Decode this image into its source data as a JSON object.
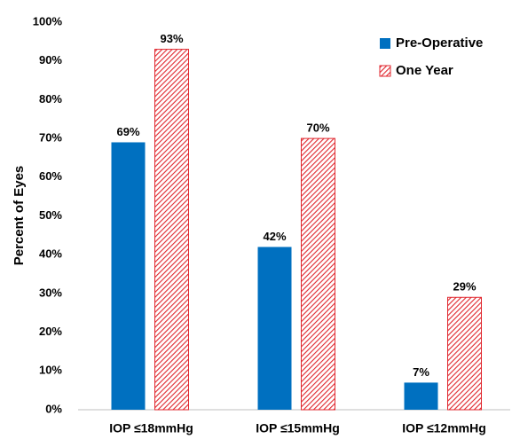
{
  "chart_data": {
    "type": "bar",
    "y_label": "Percent of Eyes",
    "categories": [
      "IOP ≤18mmHg",
      "IOP ≤15mmHg",
      "IOP ≤12mmHg"
    ],
    "series": [
      {
        "name": "Pre-Operative",
        "color": "#0070c0",
        "hatch": false,
        "values": [
          69,
          42,
          7
        ],
        "value_labels": [
          "69%",
          "42%",
          "7%"
        ]
      },
      {
        "name": "One Year",
        "color": "#e0262d",
        "hatch": true,
        "values": [
          93,
          70,
          29
        ],
        "value_labels": [
          "93%",
          "70%",
          "29%"
        ]
      }
    ],
    "ylim": [
      0,
      100
    ],
    "yticks": [
      {
        "value": 0,
        "label": "0%"
      },
      {
        "value": 10,
        "label": "10%"
      },
      {
        "value": 20,
        "label": "20%"
      },
      {
        "value": 30,
        "label": "30%"
      },
      {
        "value": 40,
        "label": "40%"
      },
      {
        "value": 50,
        "label": "50%"
      },
      {
        "value": 60,
        "label": "60%"
      },
      {
        "value": 70,
        "label": "70%"
      },
      {
        "value": 80,
        "label": "80%"
      },
      {
        "value": 90,
        "label": "90%"
      },
      {
        "value": 100,
        "label": "100%"
      }
    ],
    "grid": false,
    "legend": "top-right"
  }
}
